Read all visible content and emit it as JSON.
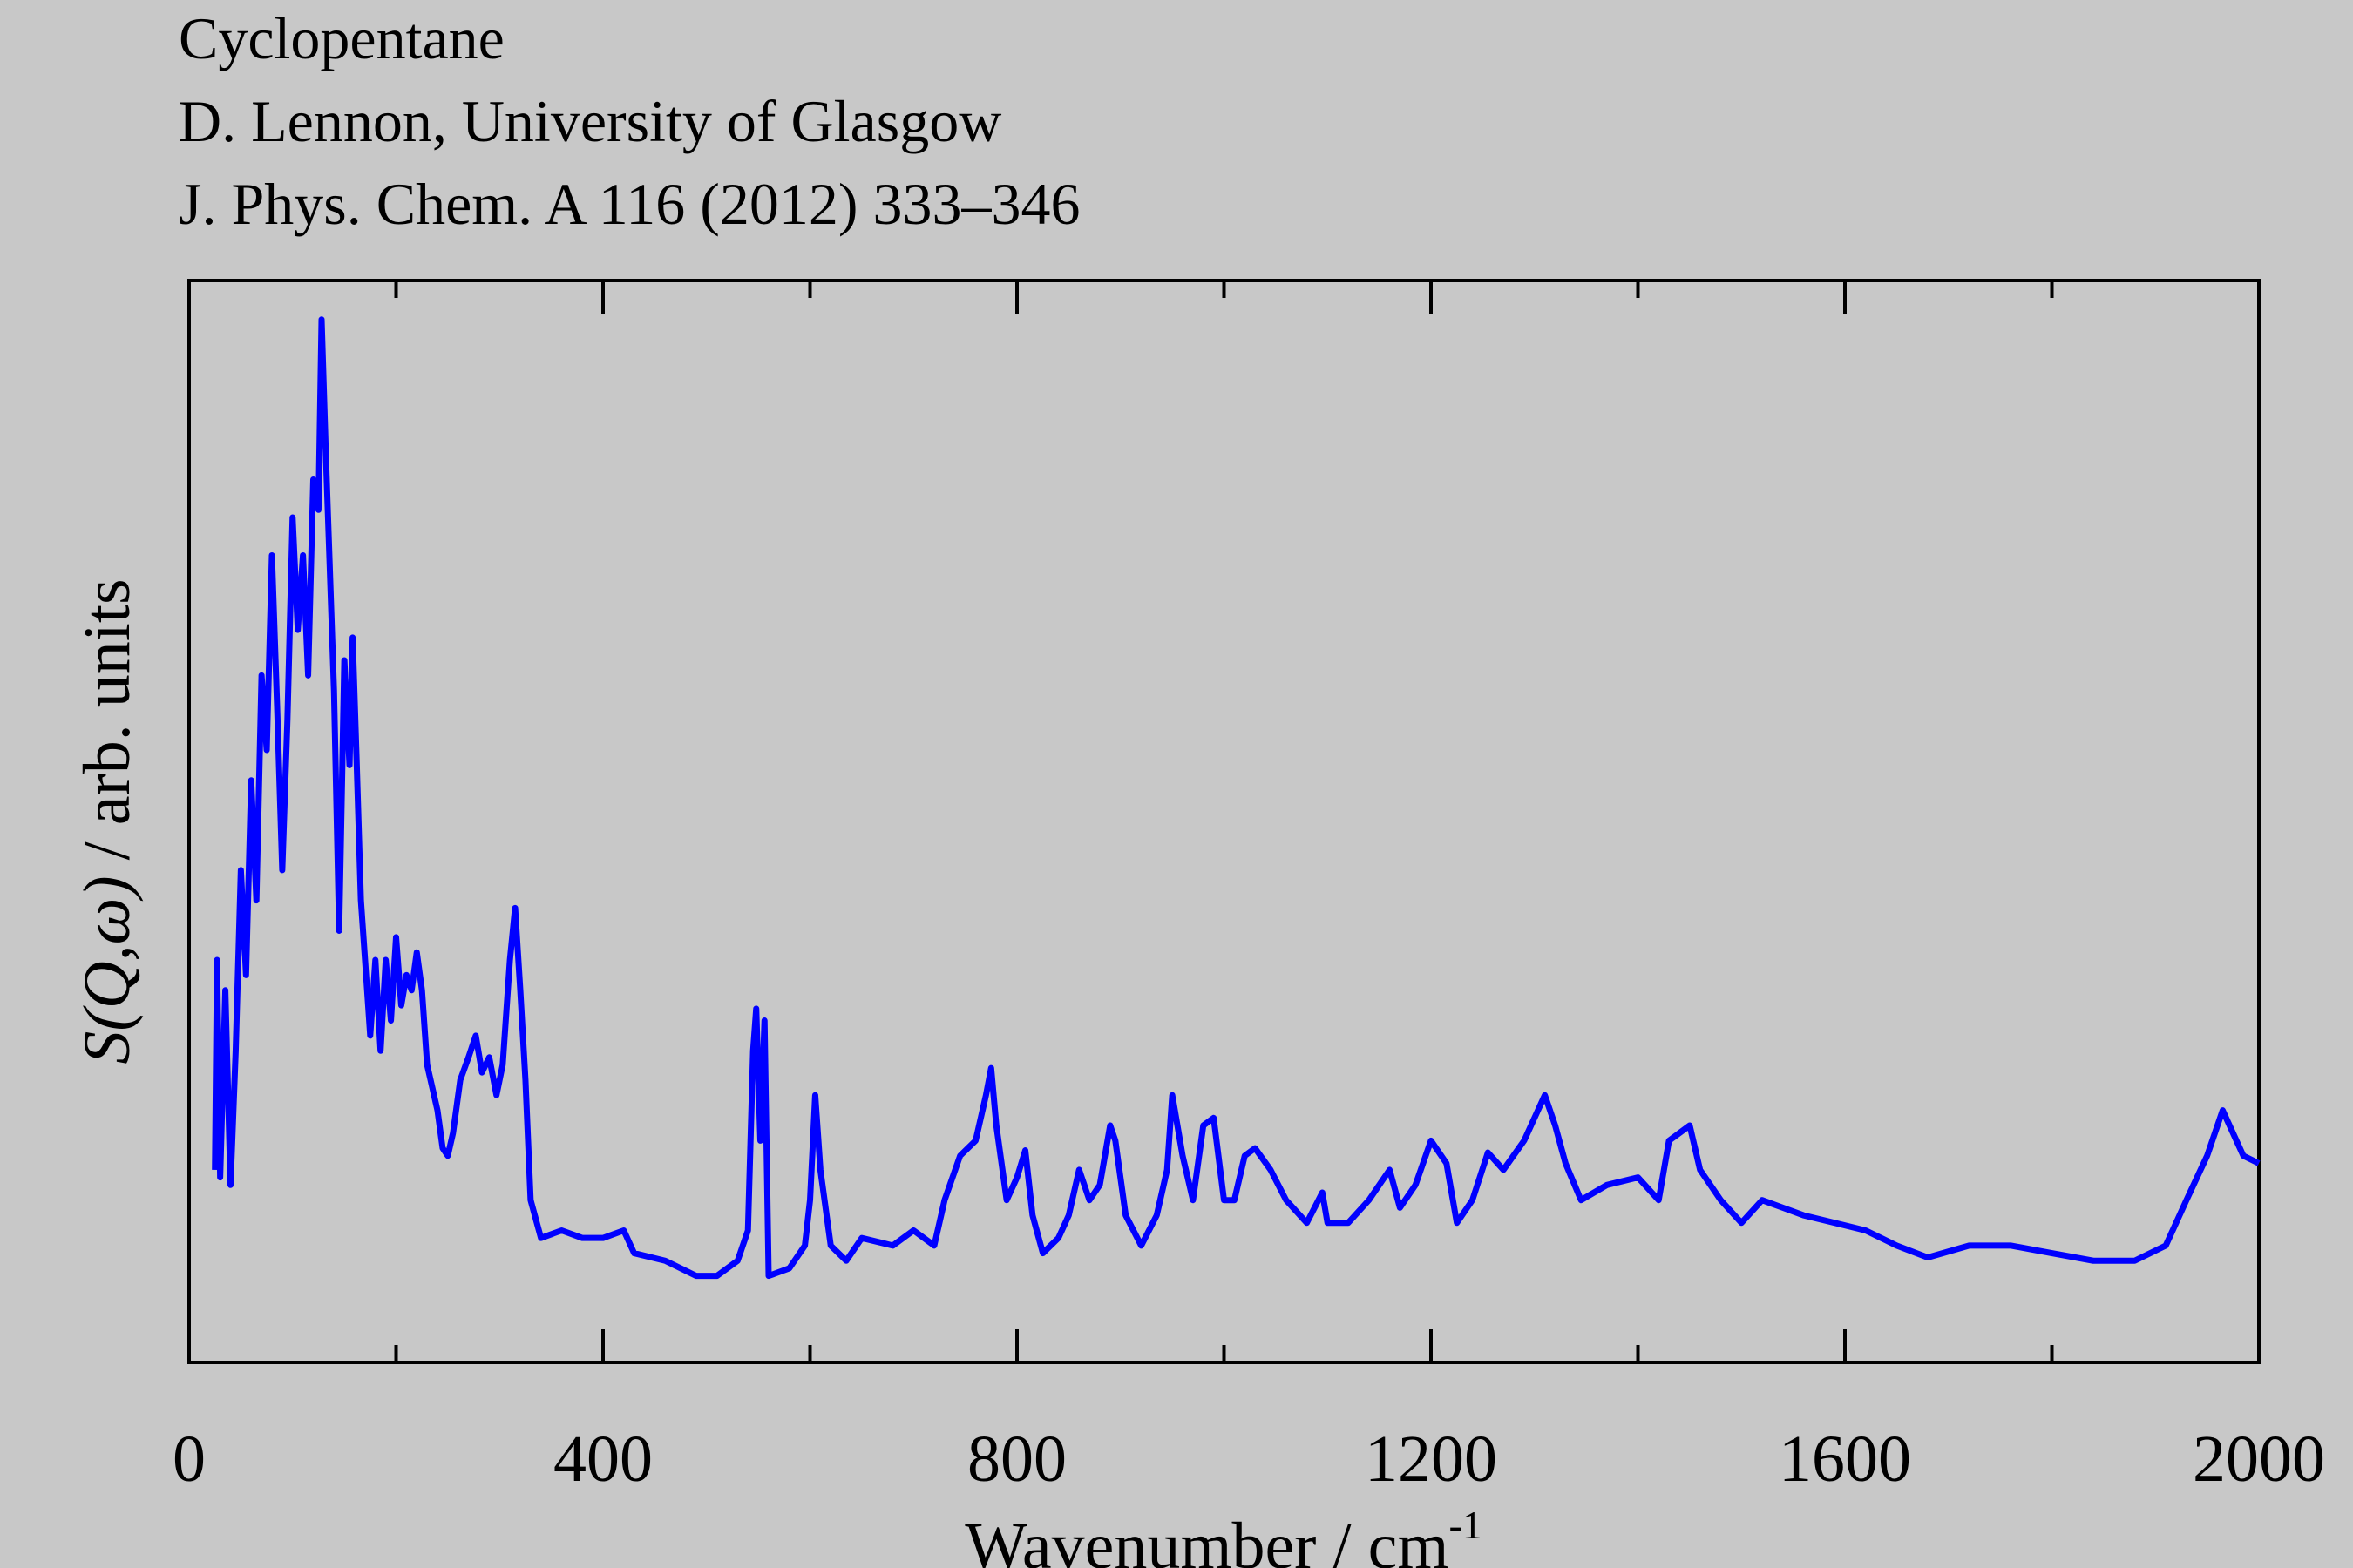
{
  "chart_data": {
    "type": "line",
    "title_lines": [
      "Cyclopentane",
      "D. Lennon, University of Glasgow",
      "J. Phys. Chem. A 116 (2012) 333–346"
    ],
    "xlabel": {
      "text": "Wavenumber / cm",
      "superscript": "-1"
    },
    "ylabel": {
      "symbol": "S(Q,ω)",
      "text": "/ arb. units"
    },
    "color": "#0000ff",
    "xlim": [
      0,
      2000
    ],
    "xticks": [
      0,
      400,
      800,
      1200,
      1600,
      2000
    ],
    "xminor": [
      200,
      600,
      1000,
      1400,
      1800
    ],
    "ylim": [
      0,
      100
    ],
    "x": [
      25,
      27,
      30,
      35,
      40,
      45,
      50,
      55,
      60,
      65,
      70,
      75,
      80,
      85,
      90,
      95,
      100,
      105,
      110,
      115,
      120,
      125,
      128,
      132,
      135,
      140,
      145,
      150,
      155,
      158,
      162,
      166,
      170,
      175,
      180,
      185,
      190,
      195,
      200,
      205,
      210,
      215,
      220,
      225,
      230,
      240,
      245,
      250,
      255,
      262,
      270,
      277,
      283,
      290,
      297,
      303,
      310,
      315,
      320,
      325,
      330,
      340,
      360,
      380,
      400,
      420,
      430,
      460,
      490,
      510,
      530,
      540,
      545,
      548,
      552,
      556,
      560,
      580,
      595,
      600,
      605,
      610,
      620,
      635,
      650,
      680,
      700,
      720,
      730,
      745,
      760,
      770,
      775,
      780,
      790,
      800,
      808,
      815,
      825,
      840,
      850,
      860,
      870,
      880,
      890,
      895,
      905,
      920,
      935,
      945,
      950,
      960,
      970,
      980,
      990,
      1000,
      1010,
      1020,
      1030,
      1045,
      1060,
      1080,
      1095,
      1100,
      1120,
      1140,
      1160,
      1170,
      1185,
      1200,
      1215,
      1225,
      1240,
      1255,
      1270,
      1290,
      1310,
      1320,
      1330,
      1345,
      1370,
      1400,
      1420,
      1430,
      1450,
      1460,
      1480,
      1500,
      1520,
      1540,
      1560,
      1590,
      1620,
      1650,
      1680,
      1720,
      1760,
      1800,
      1840,
      1880,
      1910,
      1930,
      1950,
      1965,
      1985,
      2000
    ],
    "values": [
      17.8,
      37.2,
      17.1,
      34.4,
      16.4,
      28.8,
      45.5,
      35.8,
      53.8,
      42.7,
      63.5,
      56.6,
      74.6,
      60.7,
      45.5,
      59.4,
      78.1,
      67.7,
      74.6,
      63.5,
      81.6,
      78.8,
      96.4,
      84.3,
      76.0,
      62.1,
      39.9,
      64.9,
      55.2,
      67.0,
      55.2,
      42.7,
      37.2,
      30.2,
      37.2,
      28.8,
      37.2,
      31.6,
      39.3,
      33.0,
      35.8,
      34.4,
      37.9,
      34.4,
      27.5,
      23.3,
      19.8,
      19.1,
      21.2,
      26.1,
      28.2,
      30.2,
      26.8,
      28.2,
      24.7,
      27.5,
      37.2,
      42.0,
      34.4,
      26.1,
      15.0,
      11.5,
      12.2,
      11.5,
      11.5,
      12.2,
      10.1,
      9.4,
      8.0,
      8.0,
      9.4,
      12.2,
      28.8,
      32.7,
      20.5,
      31.6,
      8.0,
      8.7,
      10.8,
      15.0,
      24.7,
      17.8,
      10.8,
      9.4,
      11.5,
      10.8,
      12.2,
      10.8,
      15.0,
      19.1,
      20.5,
      24.7,
      27.2,
      21.9,
      15.0,
      17.1,
      19.6,
      13.6,
      10.1,
      11.5,
      13.6,
      17.8,
      15.0,
      16.4,
      21.9,
      20.5,
      13.6,
      10.8,
      13.6,
      17.8,
      24.7,
      19.1,
      15.0,
      21.9,
      22.6,
      15.0,
      15.0,
      19.1,
      19.8,
      17.8,
      15.0,
      12.9,
      15.7,
      12.9,
      12.9,
      15.0,
      17.8,
      14.3,
      16.4,
      20.5,
      18.4,
      12.9,
      15.0,
      19.4,
      17.8,
      20.5,
      24.7,
      21.9,
      18.4,
      15.0,
      16.4,
      17.1,
      15.0,
      20.5,
      21.9,
      17.8,
      15.0,
      12.9,
      15.0,
      14.3,
      13.6,
      12.9,
      12.2,
      10.8,
      9.7,
      10.8,
      10.8,
      10.1,
      9.4,
      9.4,
      10.8,
      15.0,
      19.1,
      23.3,
      19.1,
      18.4
    ]
  }
}
